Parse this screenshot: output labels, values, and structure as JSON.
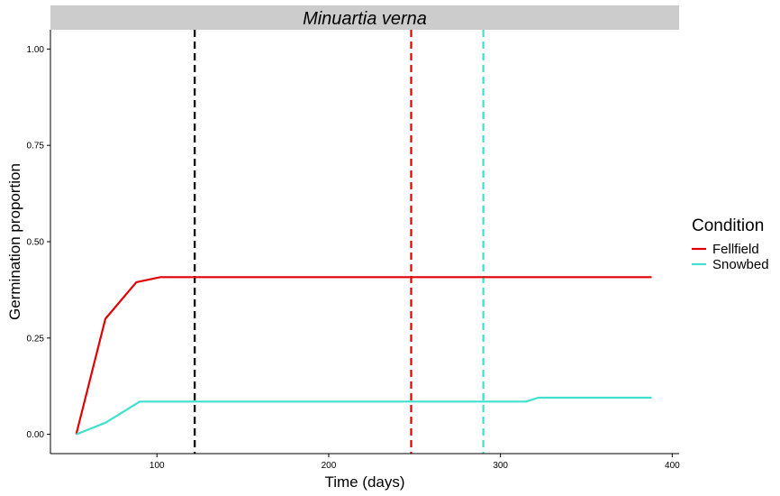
{
  "chart_data": {
    "type": "line",
    "title": "Minuartia verna",
    "xlabel": "Time (days)",
    "ylabel": "Germination proportion",
    "xlim": [
      38,
      404
    ],
    "ylim": [
      -0.05,
      1.05
    ],
    "x_ticks": [
      {
        "value": 100,
        "label": "100"
      },
      {
        "value": 200,
        "label": "200"
      },
      {
        "value": 300,
        "label": "300"
      },
      {
        "value": 400,
        "label": "400"
      }
    ],
    "y_ticks": [
      {
        "value": 0,
        "label": "0.00"
      },
      {
        "value": 0.25,
        "label": "0.25"
      },
      {
        "value": 0.5,
        "label": "0.50"
      },
      {
        "value": 0.75,
        "label": "0.75"
      },
      {
        "value": 1,
        "label": "1.00"
      }
    ],
    "grid": false,
    "legend": {
      "title": "Condition",
      "placement": "right"
    },
    "series": [
      {
        "name": "Fellfield",
        "color": "#e00000",
        "x": [
          53,
          70,
          88,
          102,
          388
        ],
        "y": [
          0.0,
          0.3,
          0.395,
          0.408,
          0.408
        ]
      },
      {
        "name": "Snowbed",
        "color": "#40e0d0",
        "x": [
          53,
          70,
          90,
          315,
          322,
          388
        ],
        "y": [
          0.0,
          0.03,
          0.085,
          0.085,
          0.095,
          0.095
        ]
      }
    ],
    "reference_lines": [
      {
        "x": 122,
        "color": "#000000"
      },
      {
        "x": 248,
        "color": "#e00000"
      },
      {
        "x": 290,
        "color": "#40e0d0"
      }
    ]
  }
}
